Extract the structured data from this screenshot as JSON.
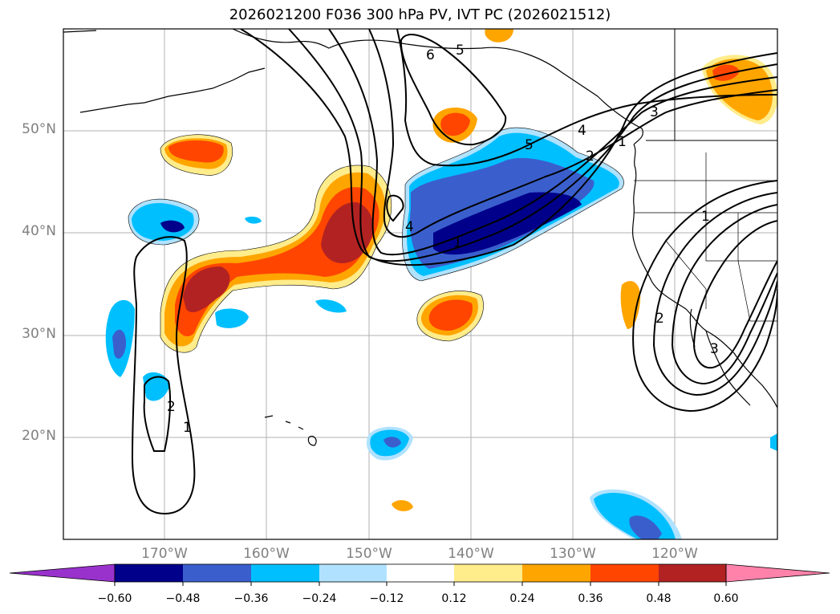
{
  "title": "2026021200 F036 300 hPa PV, IVT PC (2026021512)",
  "lat_labels": [
    "50°N",
    "40°N",
    "30°N",
    "20°N"
  ],
  "lon_labels": [
    "170°W",
    "160°W",
    "150°W",
    "140°W",
    "130°W",
    "120°W"
  ],
  "colorbar": {
    "ticks": [
      "−0.60",
      "−0.48",
      "−0.36",
      "−0.24",
      "−0.12",
      "0.12",
      "0.24",
      "0.36",
      "0.48",
      "0.60"
    ],
    "colors": [
      "#9932cc",
      "#00008b",
      "#3a5fcd",
      "#00bfff",
      "#b0e2ff",
      "#ffffff",
      "#ffec8b",
      "#ffa500",
      "#ff4500",
      "#b22222",
      "#ff82ab"
    ]
  },
  "contour_labels": [
    "6",
    "5",
    "5",
    "4",
    "4",
    "3",
    "2",
    "1",
    "1",
    "2",
    "1",
    "2",
    "1",
    "3"
  ]
}
